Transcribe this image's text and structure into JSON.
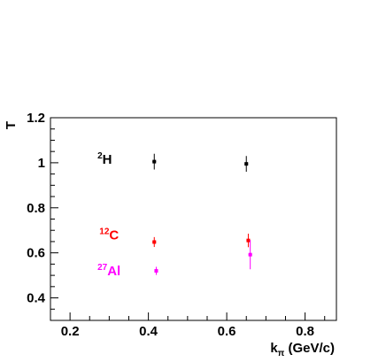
{
  "chart_data": {
    "type": "scatter",
    "title": "",
    "xlabel": {
      "main": "k",
      "sub": "π",
      "units": " (GeV/c)"
    },
    "ylabel": "T",
    "xlim": [
      0.15,
      0.88
    ],
    "ylim": [
      0.3,
      1.2
    ],
    "xticks": [
      "0.2",
      "0.4",
      "0.6",
      "0.8"
    ],
    "yticks": [
      "0.4",
      "0.6",
      "0.8",
      "1",
      "1.2"
    ],
    "xtick_values": [
      0.2,
      0.4,
      0.6,
      0.8
    ],
    "ytick_values": [
      0.4,
      0.6,
      0.8,
      1.0,
      1.2
    ],
    "grid": false,
    "legend": "inline labels at left",
    "series": [
      {
        "name": "2H",
        "label_sup": "2",
        "label_main": "H",
        "color": "#000000",
        "x": [
          0.415,
          0.65
        ],
        "y": [
          1.005,
          0.995
        ],
        "yerr": [
          0.035,
          0.035
        ],
        "label_pos": [
          0.27,
          1.015
        ]
      },
      {
        "name": "12C",
        "label_sup": "12",
        "label_main": "C",
        "color": "#ff0000",
        "x": [
          0.415,
          0.655
        ],
        "y": [
          0.648,
          0.655
        ],
        "yerr": [
          0.022,
          0.03
        ],
        "label_pos": [
          0.275,
          0.68
        ]
      },
      {
        "name": "27Al",
        "label_sup": "27",
        "label_main": "Al",
        "color": "#ff00ff",
        "x": [
          0.42,
          0.66
        ],
        "y": [
          0.52,
          0.592
        ],
        "yerr": [
          0.018,
          0.065
        ],
        "label_pos": [
          0.27,
          0.52
        ]
      }
    ]
  }
}
